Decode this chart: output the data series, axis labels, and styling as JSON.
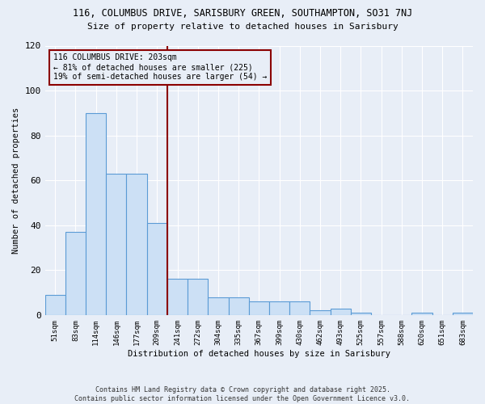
{
  "title_line1": "116, COLUMBUS DRIVE, SARISBURY GREEN, SOUTHAMPTON, SO31 7NJ",
  "title_line2": "Size of property relative to detached houses in Sarisbury",
  "xlabel": "Distribution of detached houses by size in Sarisbury",
  "ylabel": "Number of detached properties",
  "categories": [
    "51sqm",
    "83sqm",
    "114sqm",
    "146sqm",
    "177sqm",
    "209sqm",
    "241sqm",
    "272sqm",
    "304sqm",
    "335sqm",
    "367sqm",
    "399sqm",
    "430sqm",
    "462sqm",
    "493sqm",
    "525sqm",
    "557sqm",
    "588sqm",
    "620sqm",
    "651sqm",
    "683sqm"
  ],
  "values": [
    9,
    37,
    90,
    63,
    63,
    41,
    16,
    16,
    8,
    8,
    6,
    6,
    6,
    2,
    3,
    1,
    0,
    0,
    1,
    0,
    1
  ],
  "bar_color": "#cce0f5",
  "bar_edge_color": "#5b9bd5",
  "vline_x_index": 5.5,
  "vline_color": "#8b0000",
  "annotation_text_line1": "116 COLUMBUS DRIVE: 203sqm",
  "annotation_text_line2": "← 81% of detached houses are smaller (225)",
  "annotation_text_line3": "19% of semi-detached houses are larger (54) →",
  "annotation_box_color": "#8b0000",
  "annotation_fontsize": 7.0,
  "ylim": [
    0,
    120
  ],
  "yticks": [
    0,
    20,
    40,
    60,
    80,
    100,
    120
  ],
  "background_color": "#e8eef7",
  "grid_color": "#ffffff",
  "footer_line1": "Contains HM Land Registry data © Crown copyright and database right 2025.",
  "footer_line2": "Contains public sector information licensed under the Open Government Licence v3.0."
}
